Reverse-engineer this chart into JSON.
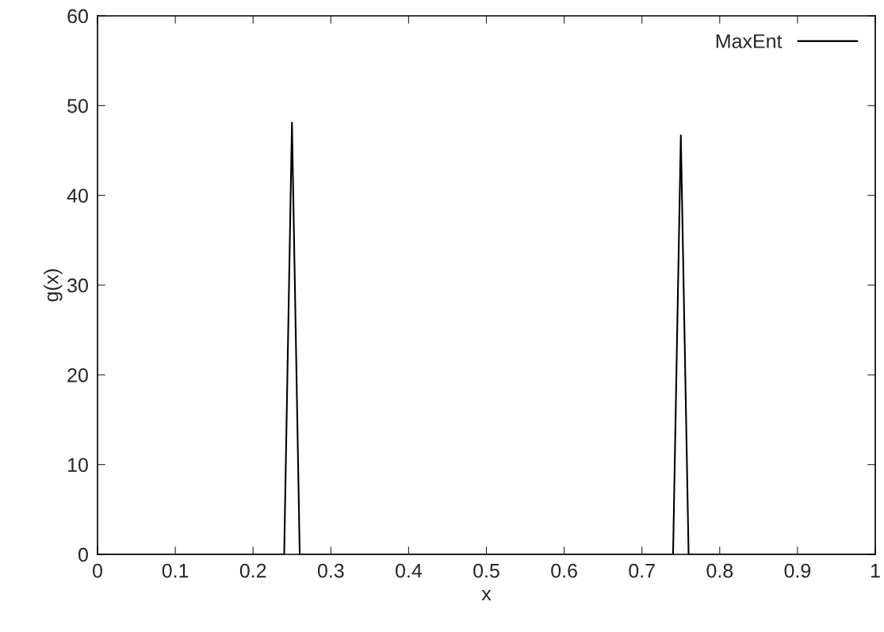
{
  "chart_data": {
    "type": "line",
    "xlabel": "x",
    "ylabel": "g(x)",
    "series": [
      {
        "name": "MaxEnt",
        "color": "#000000",
        "x": [
          0,
          0.24,
          0.25,
          0.26,
          0.74,
          0.75,
          0.76,
          1
        ],
        "values": [
          0,
          0,
          48.1,
          0,
          0,
          46.7,
          0,
          0
        ]
      }
    ],
    "xlim": [
      0,
      1
    ],
    "xticks": [
      0,
      0.1,
      0.2,
      0.3,
      0.4,
      0.5,
      0.6,
      0.7,
      0.8,
      0.9,
      1
    ],
    "ylim": [
      0,
      60
    ],
    "yticks": [
      0,
      10,
      20,
      30,
      40,
      50,
      60
    ],
    "grid": false,
    "legend": "top right",
    "marker": "none",
    "line_style": "solid"
  }
}
